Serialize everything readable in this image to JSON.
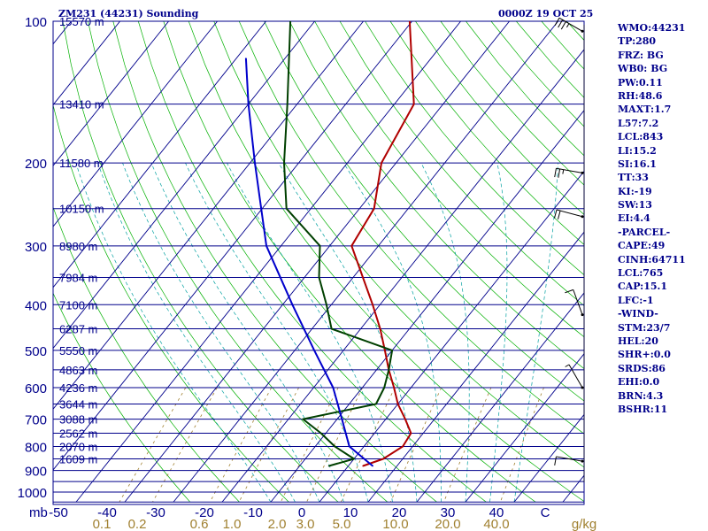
{
  "header": {
    "station": "ZM231 (44231) Sounding",
    "time": "0000Z 19 OCT 25"
  },
  "indices": [
    "WMO:44231",
    "TP:280",
    "FRZ: BG",
    "WB0: BG",
    "PW:0.11",
    "RH:48.6",
    "MAXT:1.7",
    "L57:7.2",
    "LCL:843",
    "LI:15.2",
    "SI:16.1",
    "TT:33",
    "KI:-19",
    "SW:13",
    "EI:4.4",
    "-PARCEL-",
    "CAPE:49",
    "CINH:64711",
    "LCL:765",
    "CAP:15.1",
    "LFC:-1",
    "-WIND-",
    "STM:23/7",
    "HEL:20",
    "SHR+:0.0",
    "SRDS:86",
    "EHI:0.0",
    "BRN:4.3",
    "BSHR:11"
  ],
  "chart_data": {
    "type": "line",
    "title": "",
    "xlabel": "",
    "ylabel": "mb",
    "colors": {
      "background": "#ffffff",
      "isobar": "#00008b",
      "isotherm": "#00008b",
      "dry_adiabat": "#00b000",
      "moist_adiabat": "#00a0a0",
      "mixing_ratio": "#a08030",
      "temperature": "#b00000",
      "dewpoint": "#004000",
      "parcel": "#0000cc",
      "axis_text": "#00008b",
      "mixing_ratio_text": "#a08030"
    },
    "pressure_ticks": [
      100,
      200,
      300,
      400,
      500,
      600,
      700,
      800,
      900,
      1000
    ],
    "pressure_range": [
      100,
      1050
    ],
    "temperature_ticks": [
      "-50",
      "-40",
      "-30",
      "-20",
      "-10",
      "0",
      "10",
      "20",
      "30",
      "40",
      "C"
    ],
    "temperature_range": [
      -50,
      50
    ],
    "mixing_ratio_ticks": [
      "0.1",
      "0.2",
      "0.6",
      "1.0",
      "2.0",
      "3.0",
      "5.0",
      "10.0",
      "20.0",
      "40.0",
      "g/kg"
    ],
    "height_labels": [
      {
        "p": 100,
        "label": "15570 m"
      },
      {
        "p": 150,
        "label": "13410 m"
      },
      {
        "p": 200,
        "label": "11580 m"
      },
      {
        "p": 250,
        "label": "10150 m"
      },
      {
        "p": 300,
        "label": "8980 m"
      },
      {
        "p": 350,
        "label": "7984 m"
      },
      {
        "p": 400,
        "label": "7100 m"
      },
      {
        "p": 450,
        "label": "6287 m"
      },
      {
        "p": 500,
        "label": "5550 m"
      },
      {
        "p": 550,
        "label": "4863 m"
      },
      {
        "p": 600,
        "label": "4236 m"
      },
      {
        "p": 650,
        "label": "3644 m"
      },
      {
        "p": 700,
        "label": "3088 m"
      },
      {
        "p": 750,
        "label": "2562 m"
      },
      {
        "p": 800,
        "label": "2070 m"
      },
      {
        "p": 850,
        "label": "1609 m"
      }
    ],
    "series": [
      {
        "id": "temperature",
        "points": [
          {
            "p": 880,
            "t": 3.0
          },
          {
            "p": 850,
            "t": 6.0
          },
          {
            "p": 800,
            "t": 8.0
          },
          {
            "p": 750,
            "t": 7.5
          },
          {
            "p": 700,
            "t": 4.0
          },
          {
            "p": 650,
            "t": 0.0
          },
          {
            "p": 600,
            "t": -3.5
          },
          {
            "p": 550,
            "t": -7.5
          },
          {
            "p": 500,
            "t": -11.5
          },
          {
            "p": 450,
            "t": -16.0
          },
          {
            "p": 400,
            "t": -21.5
          },
          {
            "p": 350,
            "t": -28.0
          },
          {
            "p": 300,
            "t": -35.5
          },
          {
            "p": 250,
            "t": -37.0
          },
          {
            "p": 200,
            "t": -43.0
          },
          {
            "p": 150,
            "t": -46.0
          },
          {
            "p": 100,
            "t": -60.5
          }
        ]
      },
      {
        "id": "dewpoint",
        "points": [
          {
            "p": 880,
            "t": -4.0
          },
          {
            "p": 850,
            "t": 0.0
          },
          {
            "p": 800,
            "t": -6.0
          },
          {
            "p": 750,
            "t": -11.0
          },
          {
            "p": 700,
            "t": -17.0
          },
          {
            "p": 650,
            "t": -4.5
          },
          {
            "p": 600,
            "t": -5.5
          },
          {
            "p": 550,
            "t": -7.5
          },
          {
            "p": 500,
            "t": -10.0
          },
          {
            "p": 450,
            "t": -26.0
          },
          {
            "p": 400,
            "t": -31.0
          },
          {
            "p": 350,
            "t": -37.0
          },
          {
            "p": 300,
            "t": -42.0
          },
          {
            "p": 250,
            "t": -55.0
          },
          {
            "p": 200,
            "t": -63.0
          },
          {
            "p": 150,
            "t": -72.0
          },
          {
            "p": 100,
            "t": -85.0
          }
        ]
      },
      {
        "id": "parcel",
        "points": [
          {
            "p": 880,
            "t": 5.0
          },
          {
            "p": 800,
            "t": -3.0
          },
          {
            "p": 700,
            "t": -9.0
          },
          {
            "p": 600,
            "t": -16.0
          },
          {
            "p": 500,
            "t": -26.0
          },
          {
            "p": 400,
            "t": -38.0
          },
          {
            "p": 300,
            "t": -53.0
          },
          {
            "p": 200,
            "t": -69.0
          },
          {
            "p": 150,
            "t": -80.0
          },
          {
            "p": 120,
            "t": -88.0
          }
        ]
      }
    ],
    "winds": [
      {
        "p": 105,
        "dir": 300,
        "kt": 35
      },
      {
        "p": 210,
        "dir": 280,
        "kt": 25
      },
      {
        "p": 260,
        "dir": 285,
        "kt": 20
      },
      {
        "p": 420,
        "dir": 340,
        "kt": 10
      },
      {
        "p": 600,
        "dir": 330,
        "kt": 5
      },
      {
        "p": 860,
        "dir": 280,
        "kt": 10
      }
    ]
  }
}
